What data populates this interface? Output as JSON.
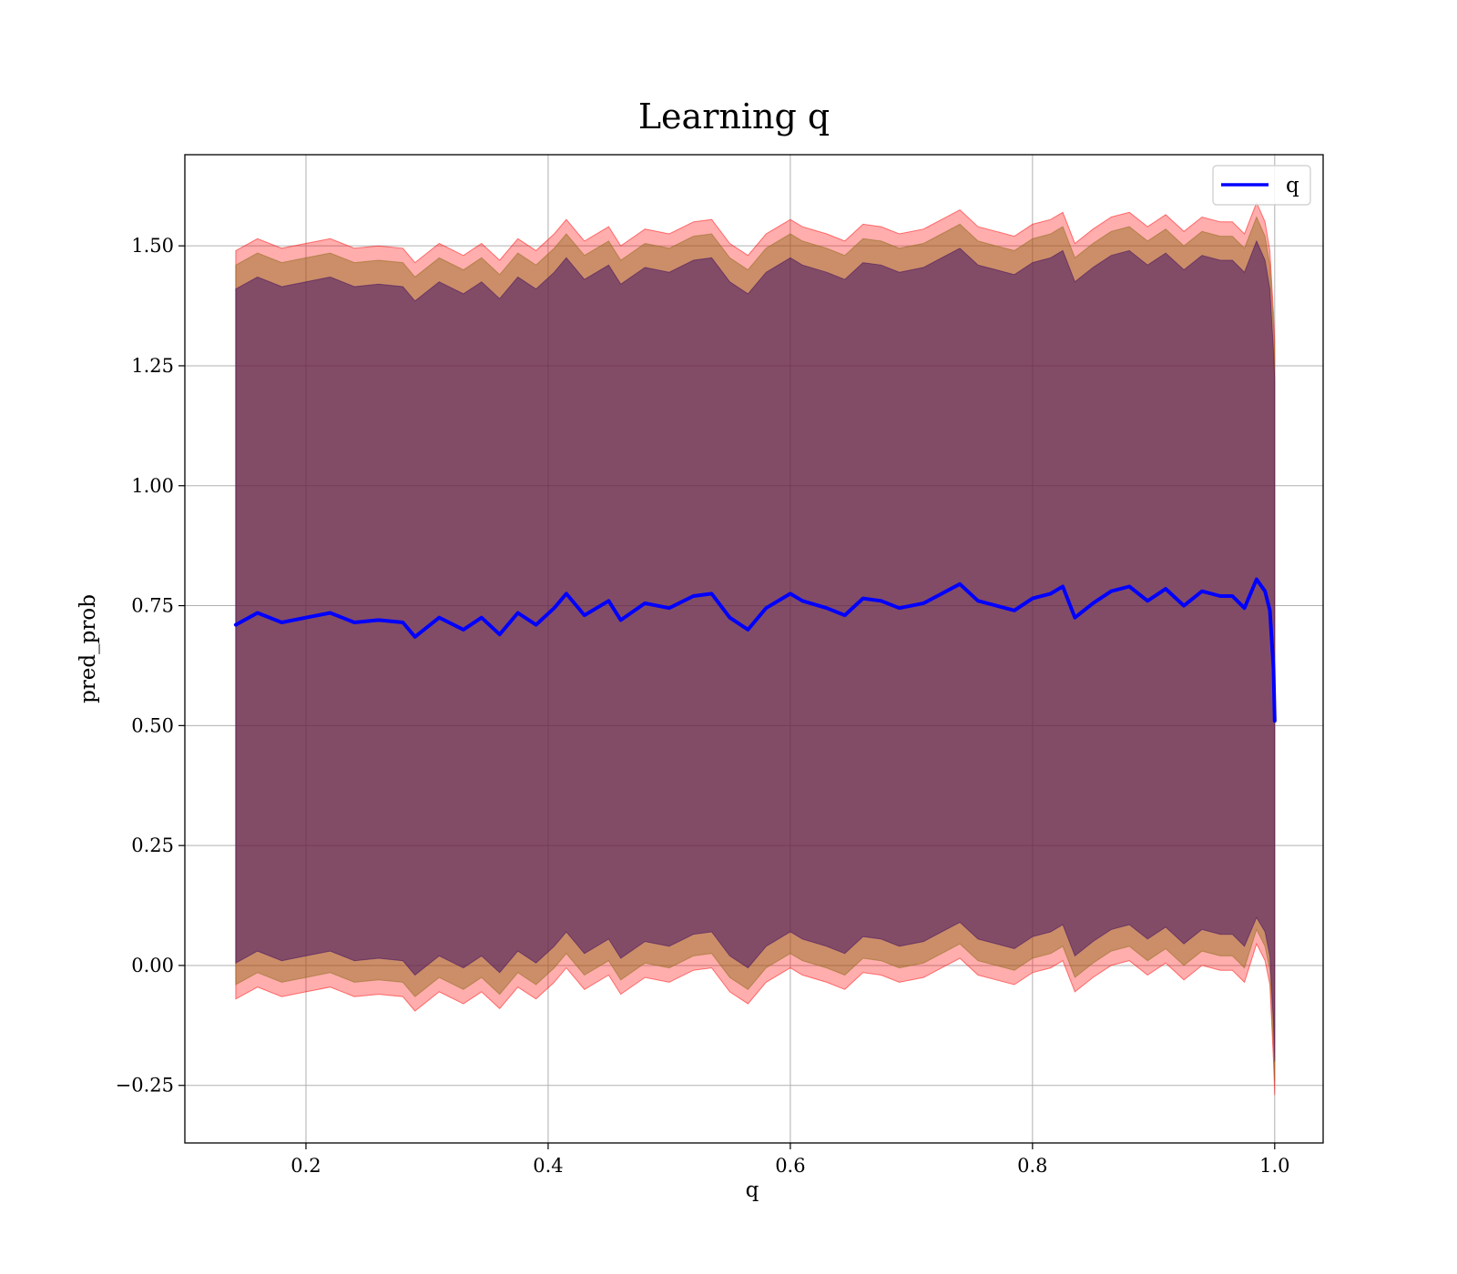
{
  "chart_data": {
    "type": "line",
    "title": "Learning q",
    "xlabel": "q",
    "ylabel": "pred_prob",
    "xlim": [
      0.1,
      1.04
    ],
    "ylim": [
      -0.37,
      1.69
    ],
    "xticks": [
      0.2,
      0.4,
      0.6,
      0.8,
      1.0
    ],
    "xtick_labels": [
      "0.2",
      "0.4",
      "0.6",
      "0.8",
      "1.0"
    ],
    "yticks": [
      -0.25,
      0.0,
      0.25,
      0.5,
      0.75,
      1.0,
      1.25,
      1.5
    ],
    "ytick_labels": [
      "−0.25",
      "0.00",
      "0.25",
      "0.50",
      "0.75",
      "1.00",
      "1.25",
      "1.50"
    ],
    "grid": true,
    "legend": {
      "position": "top-right",
      "entries": [
        "q"
      ]
    },
    "colors": {
      "line": "#0000ff",
      "outer_band": "#ff0000",
      "middle_band": "#8b6914",
      "inner_band": "#3c0a64"
    },
    "x": [
      0.142,
      0.16,
      0.18,
      0.2,
      0.22,
      0.24,
      0.26,
      0.28,
      0.29,
      0.31,
      0.33,
      0.345,
      0.36,
      0.375,
      0.39,
      0.405,
      0.415,
      0.43,
      0.45,
      0.46,
      0.48,
      0.5,
      0.52,
      0.535,
      0.55,
      0.565,
      0.58,
      0.6,
      0.61,
      0.63,
      0.645,
      0.66,
      0.675,
      0.69,
      0.71,
      0.725,
      0.74,
      0.755,
      0.77,
      0.785,
      0.8,
      0.815,
      0.825,
      0.835,
      0.85,
      0.865,
      0.88,
      0.895,
      0.91,
      0.925,
      0.94,
      0.955,
      0.965,
      0.975,
      0.985,
      0.992,
      0.996,
      0.999,
      1.0
    ],
    "series": [
      {
        "name": "q",
        "values": [
          0.71,
          0.735,
          0.715,
          0.725,
          0.735,
          0.715,
          0.72,
          0.715,
          0.685,
          0.725,
          0.7,
          0.725,
          0.69,
          0.735,
          0.71,
          0.745,
          0.775,
          0.73,
          0.76,
          0.72,
          0.755,
          0.745,
          0.77,
          0.775,
          0.725,
          0.7,
          0.745,
          0.775,
          0.76,
          0.745,
          0.73,
          0.765,
          0.76,
          0.745,
          0.755,
          0.775,
          0.795,
          0.76,
          0.75,
          0.74,
          0.765,
          0.775,
          0.79,
          0.725,
          0.755,
          0.78,
          0.79,
          0.76,
          0.785,
          0.75,
          0.78,
          0.77,
          0.77,
          0.745,
          0.805,
          0.78,
          0.74,
          0.62,
          0.51
        ]
      }
    ],
    "bands": [
      {
        "lower": [
          -0.07,
          -0.045,
          -0.065,
          -0.055,
          -0.045,
          -0.065,
          -0.06,
          -0.065,
          -0.095,
          -0.055,
          -0.08,
          -0.055,
          -0.09,
          -0.045,
          -0.07,
          -0.035,
          -0.005,
          -0.05,
          -0.02,
          -0.06,
          -0.025,
          -0.035,
          -0.01,
          -0.005,
          -0.055,
          -0.08,
          -0.035,
          -0.005,
          -0.02,
          -0.035,
          -0.05,
          -0.015,
          -0.02,
          -0.035,
          -0.025,
          -0.005,
          0.015,
          -0.02,
          -0.03,
          -0.04,
          -0.015,
          -0.005,
          0.01,
          -0.055,
          -0.025,
          0.0,
          0.01,
          -0.02,
          0.005,
          -0.03,
          0.0,
          -0.01,
          -0.01,
          -0.035,
          0.045,
          0.01,
          -0.04,
          -0.2,
          -0.27
        ],
        "upper": [
          1.49,
          1.515,
          1.495,
          1.505,
          1.515,
          1.495,
          1.5,
          1.495,
          1.465,
          1.505,
          1.48,
          1.505,
          1.47,
          1.515,
          1.49,
          1.525,
          1.555,
          1.51,
          1.54,
          1.5,
          1.535,
          1.525,
          1.55,
          1.555,
          1.505,
          1.48,
          1.525,
          1.555,
          1.54,
          1.525,
          1.51,
          1.545,
          1.54,
          1.525,
          1.535,
          1.555,
          1.575,
          1.54,
          1.53,
          1.52,
          1.545,
          1.555,
          1.57,
          1.505,
          1.535,
          1.56,
          1.57,
          1.54,
          1.565,
          1.53,
          1.56,
          1.55,
          1.55,
          1.525,
          1.59,
          1.55,
          1.49,
          1.36,
          1.3
        ]
      },
      {
        "lower": [
          -0.04,
          -0.015,
          -0.035,
          -0.025,
          -0.015,
          -0.035,
          -0.03,
          -0.035,
          -0.065,
          -0.025,
          -0.05,
          -0.025,
          -0.06,
          -0.015,
          -0.04,
          -0.005,
          0.025,
          -0.02,
          0.01,
          -0.03,
          0.005,
          -0.005,
          0.02,
          0.025,
          -0.025,
          -0.05,
          -0.005,
          0.025,
          0.01,
          -0.005,
          -0.02,
          0.015,
          0.01,
          -0.005,
          0.005,
          0.025,
          0.045,
          0.01,
          0.0,
          -0.01,
          0.015,
          0.025,
          0.04,
          -0.025,
          0.005,
          0.03,
          0.04,
          0.01,
          0.035,
          0.0,
          0.03,
          0.02,
          0.02,
          -0.005,
          0.075,
          0.04,
          -0.01,
          -0.17,
          -0.24
        ],
        "upper": [
          1.46,
          1.485,
          1.465,
          1.475,
          1.485,
          1.465,
          1.47,
          1.465,
          1.435,
          1.475,
          1.45,
          1.475,
          1.44,
          1.485,
          1.46,
          1.495,
          1.525,
          1.48,
          1.51,
          1.47,
          1.505,
          1.495,
          1.52,
          1.525,
          1.475,
          1.45,
          1.495,
          1.525,
          1.51,
          1.495,
          1.48,
          1.515,
          1.51,
          1.495,
          1.505,
          1.525,
          1.545,
          1.51,
          1.5,
          1.49,
          1.515,
          1.525,
          1.54,
          1.475,
          1.505,
          1.53,
          1.54,
          1.51,
          1.535,
          1.5,
          1.53,
          1.52,
          1.52,
          1.495,
          1.56,
          1.52,
          1.46,
          1.33,
          1.27
        ]
      },
      {
        "lower": [
          0.005,
          0.03,
          0.01,
          0.02,
          0.03,
          0.01,
          0.015,
          0.01,
          -0.02,
          0.02,
          -0.005,
          0.02,
          -0.015,
          0.03,
          0.005,
          0.04,
          0.07,
          0.025,
          0.055,
          0.015,
          0.05,
          0.04,
          0.065,
          0.07,
          0.02,
          -0.005,
          0.04,
          0.07,
          0.055,
          0.04,
          0.025,
          0.06,
          0.055,
          0.04,
          0.05,
          0.07,
          0.09,
          0.055,
          0.045,
          0.035,
          0.06,
          0.07,
          0.085,
          0.02,
          0.05,
          0.075,
          0.085,
          0.055,
          0.08,
          0.045,
          0.075,
          0.065,
          0.065,
          0.04,
          0.1,
          0.07,
          0.02,
          -0.12,
          -0.2
        ],
        "upper": [
          1.41,
          1.435,
          1.415,
          1.425,
          1.435,
          1.415,
          1.42,
          1.415,
          1.385,
          1.425,
          1.4,
          1.425,
          1.39,
          1.435,
          1.41,
          1.445,
          1.475,
          1.43,
          1.46,
          1.42,
          1.455,
          1.445,
          1.47,
          1.475,
          1.425,
          1.4,
          1.445,
          1.475,
          1.46,
          1.445,
          1.43,
          1.465,
          1.46,
          1.445,
          1.455,
          1.475,
          1.495,
          1.46,
          1.45,
          1.44,
          1.465,
          1.475,
          1.49,
          1.425,
          1.455,
          1.48,
          1.49,
          1.46,
          1.485,
          1.45,
          1.48,
          1.47,
          1.47,
          1.445,
          1.51,
          1.47,
          1.41,
          1.28,
          1.22
        ]
      }
    ]
  }
}
